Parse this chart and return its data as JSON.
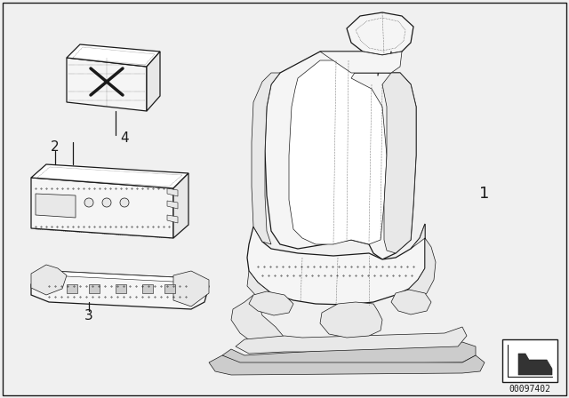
{
  "background_color": "#f0f0f0",
  "line_color": "#1a1a1a",
  "fill_light": "#f5f5f5",
  "fill_mid": "#e8e8e8",
  "fill_dark": "#cccccc",
  "fill_white": "#ffffff",
  "label_1": "1",
  "label_2": "2",
  "label_3": "3",
  "label_4": "4",
  "part_number": "00097402",
  "label_fontsize": 11,
  "part_number_fontsize": 7,
  "fig_width": 6.4,
  "fig_height": 4.48,
  "dpi": 100
}
